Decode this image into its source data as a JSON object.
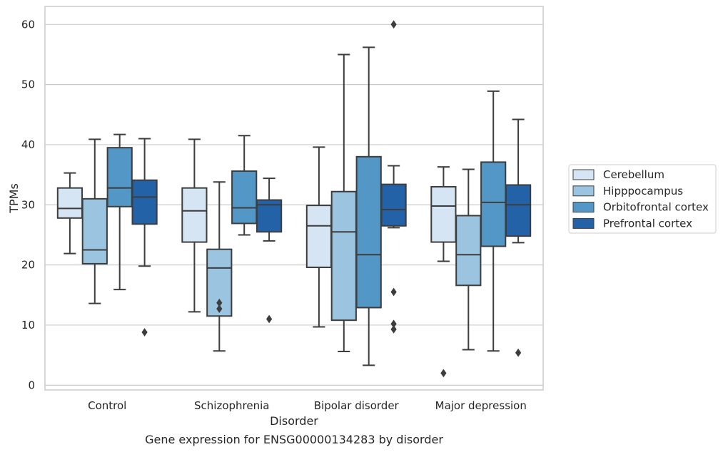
{
  "chart_data": {
    "type": "box",
    "title": "Gene expression for ENSG00000134283 by disorder",
    "xlabel": "Disorder",
    "ylabel": "TPMs",
    "ylim": [
      -0.8,
      63
    ],
    "yticks": [
      0,
      10,
      20,
      30,
      40,
      50,
      60
    ],
    "grid": "horizontal",
    "legend_position": "right",
    "categories": [
      "Control",
      "Schizophrenia",
      "Bipolar disorder",
      "Major depression"
    ],
    "series": [
      {
        "name": "Cerebellum",
        "color": "#d6e5f4",
        "boxes": [
          {
            "whisker_low": 21.9,
            "q1": 27.8,
            "median": 29.4,
            "q3": 32.8,
            "whisker_high": 35.3,
            "outliers": []
          },
          {
            "whisker_low": 12.2,
            "q1": 23.8,
            "median": 29.0,
            "q3": 32.8,
            "whisker_high": 40.9,
            "outliers": []
          },
          {
            "whisker_low": 9.7,
            "q1": 19.6,
            "median": 26.5,
            "q3": 29.9,
            "whisker_high": 39.6,
            "outliers": []
          },
          {
            "whisker_low": 20.6,
            "q1": 23.8,
            "median": 29.8,
            "q3": 33.0,
            "whisker_high": 36.3,
            "outliers": [
              2.0
            ]
          }
        ]
      },
      {
        "name": "Hipppocampus",
        "color": "#9ac4df",
        "boxes": [
          {
            "whisker_low": 13.6,
            "q1": 20.2,
            "median": 22.5,
            "q3": 31.0,
            "whisker_high": 40.9,
            "outliers": []
          },
          {
            "whisker_low": 5.7,
            "q1": 11.5,
            "median": 19.5,
            "q3": 22.6,
            "whisker_high": 33.8,
            "outliers": [
              12.7,
              13.7
            ]
          },
          {
            "whisker_low": 5.6,
            "q1": 10.8,
            "median": 25.5,
            "q3": 32.2,
            "whisker_high": 55.0,
            "outliers": []
          },
          {
            "whisker_low": 5.9,
            "q1": 16.6,
            "median": 21.7,
            "q3": 28.2,
            "whisker_high": 35.9,
            "outliers": []
          }
        ]
      },
      {
        "name": "Orbitofrontal cortex",
        "color": "#5297c6",
        "boxes": [
          {
            "whisker_low": 15.9,
            "q1": 29.7,
            "median": 32.8,
            "q3": 39.5,
            "whisker_high": 41.7,
            "outliers": []
          },
          {
            "whisker_low": 25.0,
            "q1": 26.9,
            "median": 29.5,
            "q3": 35.6,
            "whisker_high": 41.5,
            "outliers": []
          },
          {
            "whisker_low": 3.3,
            "q1": 12.9,
            "median": 21.7,
            "q3": 38.0,
            "whisker_high": 56.2,
            "outliers": []
          },
          {
            "whisker_low": 5.7,
            "q1": 23.1,
            "median": 30.4,
            "q3": 37.1,
            "whisker_high": 48.9,
            "outliers": []
          }
        ]
      },
      {
        "name": "Prefrontal cortex",
        "color": "#2462a8",
        "boxes": [
          {
            "whisker_low": 19.8,
            "q1": 26.8,
            "median": 31.3,
            "q3": 34.1,
            "whisker_high": 41.0,
            "outliers": [
              8.8
            ]
          },
          {
            "whisker_low": 24.0,
            "q1": 25.5,
            "median": 30.0,
            "q3": 30.8,
            "whisker_high": 34.4,
            "outliers": [
              11.0
            ]
          },
          {
            "whisker_low": 26.2,
            "q1": 26.5,
            "median": 29.2,
            "q3": 33.4,
            "whisker_high": 36.5,
            "outliers": [
              15.5,
              10.2,
              9.3,
              60.0
            ]
          },
          {
            "whisker_low": 23.7,
            "q1": 24.8,
            "median": 30.0,
            "q3": 33.3,
            "whisker_high": 44.2,
            "outliers": [
              5.4
            ]
          }
        ]
      }
    ]
  }
}
